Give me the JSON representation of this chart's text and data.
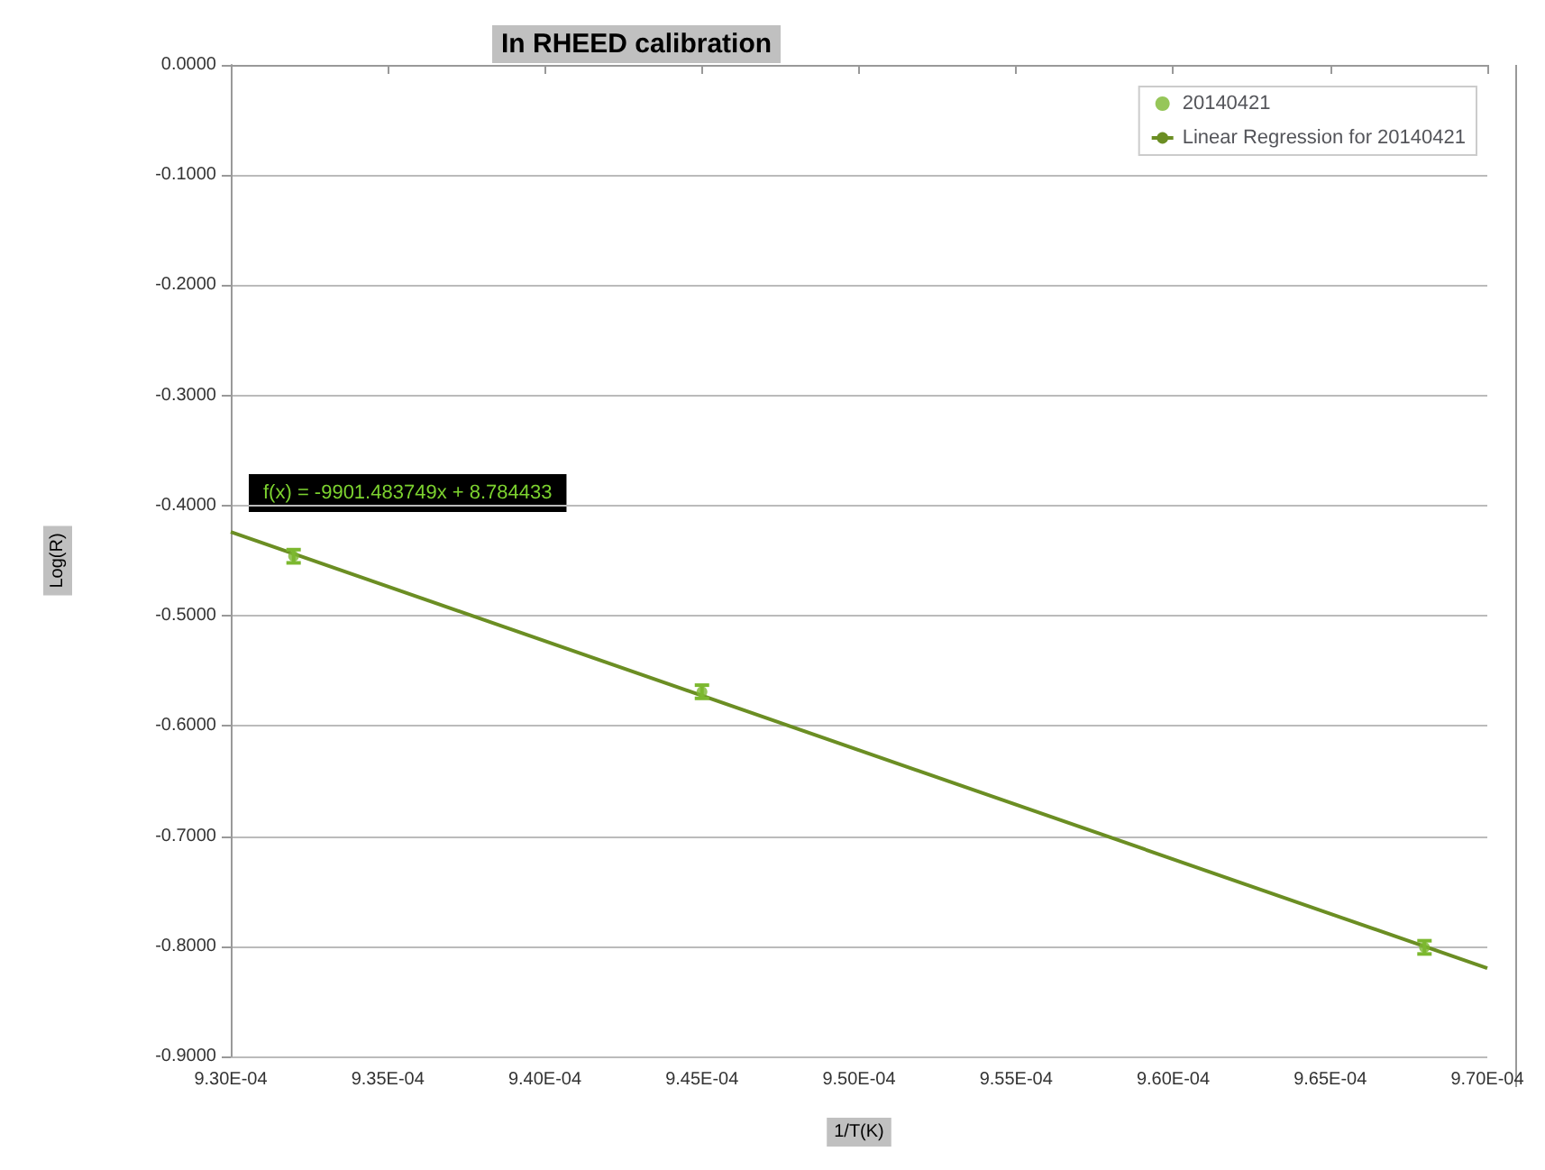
{
  "chart_data": {
    "type": "scatter",
    "title": "In RHEED calibration",
    "xlabel": "1/T(K)",
    "ylabel": "Log(R)",
    "annotations": [
      "f(x) = -9901.483749x + 8.784433"
    ],
    "series": [
      {
        "name": "20140421",
        "marker": "circle",
        "color": "#7cb82f",
        "x": [
          0.000932,
          0.000945,
          0.000968
        ],
        "values": [
          -0.446,
          -0.569,
          -0.801
        ],
        "errors": [
          0.006,
          0.006,
          0.006
        ]
      },
      {
        "name": "Linear Regression for 20140421",
        "type": "line",
        "color": "#6b8e23",
        "x": [
          0.00093,
          0.00097
        ],
        "values": [
          -0.424,
          -0.82
        ]
      }
    ],
    "xlim": [
      0.00093,
      0.00097
    ],
    "xticks": [
      {
        "value": 0.00093,
        "label": "9.30E-04"
      },
      {
        "value": 0.000935,
        "label": "9.35E-04"
      },
      {
        "value": 0.00094,
        "label": "9.40E-04"
      },
      {
        "value": 0.000945,
        "label": "9.45E-04"
      },
      {
        "value": 0.00095,
        "label": "9.50E-04"
      },
      {
        "value": 0.000955,
        "label": "9.55E-04"
      },
      {
        "value": 0.00096,
        "label": "9.60E-04"
      },
      {
        "value": 0.000965,
        "label": "9.65E-04"
      },
      {
        "value": 0.00097,
        "label": "9.70E-04"
      }
    ],
    "ylim": [
      -0.9,
      0
    ],
    "yticks": [
      {
        "value": 0,
        "label": "0.0000"
      },
      {
        "value": -0.1,
        "label": "-0.1000"
      },
      {
        "value": -0.2,
        "label": "-0.2000"
      },
      {
        "value": -0.3,
        "label": "-0.3000"
      },
      {
        "value": -0.4,
        "label": "-0.4000"
      },
      {
        "value": -0.5,
        "label": "-0.5000"
      },
      {
        "value": -0.6,
        "label": "-0.6000"
      },
      {
        "value": -0.7,
        "label": "-0.7000"
      },
      {
        "value": -0.8,
        "label": "-0.8000"
      },
      {
        "value": -0.9,
        "label": "-0.9000"
      }
    ],
    "grid": "y",
    "legend": "top right"
  }
}
